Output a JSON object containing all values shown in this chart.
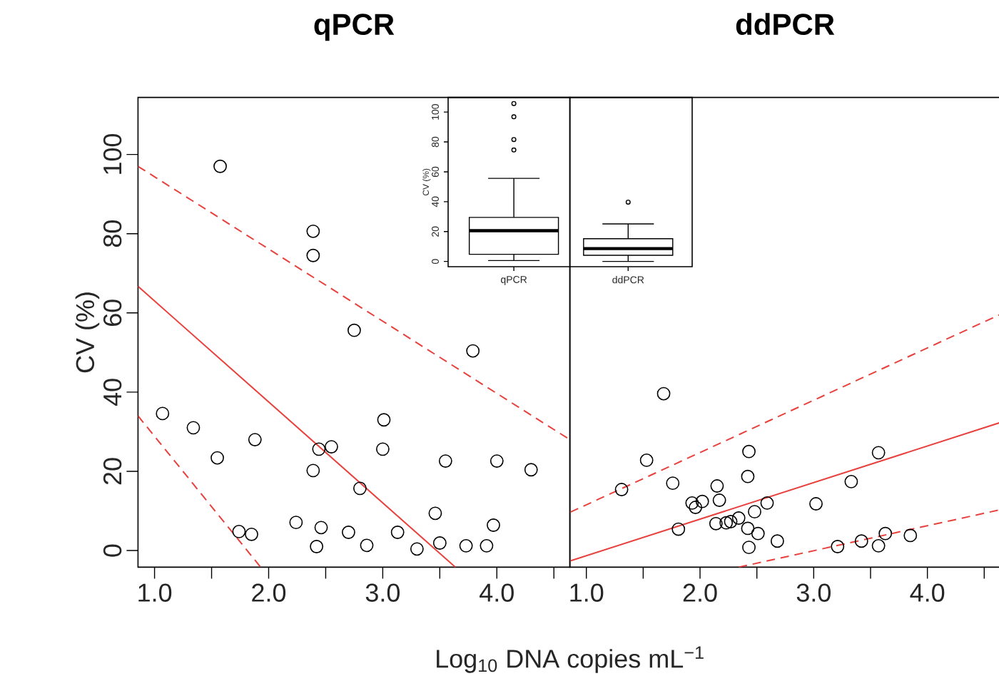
{
  "chart_data": [
    {
      "type": "scatter",
      "title": "qPCR",
      "xlabel": "Log$_{10}$ DNA copies mL$^{−1}$",
      "ylabel": "CV (%)",
      "xlim": [
        0.855,
        4.64
      ],
      "ylim": [
        -4.2,
        114.4
      ],
      "xticks": [
        {
          "value": 1,
          "label": "1.0"
        },
        {
          "value": 1.5,
          "label": null
        },
        {
          "value": 2,
          "label": "2.0"
        },
        {
          "value": 2.5,
          "label": null
        },
        {
          "value": 3,
          "label": "3.0"
        },
        {
          "value": 3.5,
          "label": null
        },
        {
          "value": 4,
          "label": "4.0"
        },
        {
          "value": 4.5,
          "label": null
        }
      ],
      "yticks": [
        0,
        20,
        40,
        60,
        80,
        100
      ],
      "series": [
        {
          "type": "scatter",
          "marker": "circle",
          "color": "#000000",
          "x": [
            1.575,
            2.39,
            2.39,
            2.75,
            3.79,
            1.07,
            1.34,
            1.55,
            1.88,
            3.01,
            2.44,
            2.55,
            3.0,
            2.39,
            3.55,
            4.0,
            4.3,
            2.8,
            1.74,
            1.85,
            2.24,
            2.46,
            2.7,
            3.13,
            3.46,
            3.97,
            2.42,
            2.86,
            3.3,
            3.5,
            3.73,
            3.91
          ],
          "values": [
            97.0,
            80.6,
            74.5,
            55.6,
            50.4,
            34.6,
            31.0,
            23.4,
            28.0,
            33.0,
            25.6,
            26.2,
            25.6,
            20.2,
            22.6,
            22.6,
            20.4,
            15.7,
            4.8,
            4.1,
            7.1,
            5.8,
            4.6,
            4.6,
            9.4,
            6.4,
            1.0,
            1.3,
            0.4,
            1.9,
            1.2,
            1.2
          ]
        },
        {
          "type": "line",
          "color": "#e8413d",
          "line_style": "solid",
          "x": [
            0.855,
            3.637
          ],
          "values": [
            66.7,
            -4.2
          ]
        },
        {
          "type": "line",
          "color": "#e8413d",
          "line_style": "dashed",
          "x": [
            0.855,
            4.64
          ],
          "values": [
            97.0,
            28.0
          ]
        },
        {
          "type": "line",
          "color": "#e8413d",
          "line_style": "dashed",
          "x": [
            0.855,
            1.93
          ],
          "values": [
            34.0,
            -4.2
          ]
        }
      ]
    },
    {
      "type": "scatter",
      "title": "ddPCR",
      "xlim": [
        0.855,
        4.64
      ],
      "ylim": [
        -4.2,
        114.4
      ],
      "tick_labels": "x",
      "xticks": [
        {
          "value": 1,
          "label": "1.0"
        },
        {
          "value": 1.5,
          "label": null
        },
        {
          "value": 2,
          "label": "2.0"
        },
        {
          "value": 2.5,
          "label": null
        },
        {
          "value": 3,
          "label": "3.0"
        },
        {
          "value": 3.5,
          "label": null
        },
        {
          "value": 4,
          "label": "4.0"
        },
        {
          "value": 4.5,
          "label": null
        }
      ],
      "series": [
        {
          "type": "scatter",
          "marker": "circle",
          "color": "#000000",
          "x": [
            1.68,
            1.53,
            1.31,
            1.76,
            2.43,
            2.42,
            3.57,
            3.33,
            2.15,
            1.93,
            1.96,
            2.02,
            2.17,
            2.59,
            3.02,
            2.48,
            1.81,
            2.14,
            2.23,
            2.27,
            2.34,
            2.42,
            2.51,
            2.68,
            2.43,
            3.21,
            3.42,
            3.57,
            3.63,
            3.85
          ],
          "values": [
            39.6,
            22.8,
            15.4,
            17.0,
            25.0,
            18.7,
            24.7,
            17.4,
            16.3,
            12.0,
            10.9,
            12.4,
            12.7,
            12.0,
            11.8,
            9.8,
            5.4,
            6.8,
            7.0,
            7.3,
            8.2,
            5.6,
            4.3,
            2.4,
            0.8,
            1.0,
            2.4,
            1.2,
            4.3,
            3.8
          ]
        },
        {
          "type": "line",
          "color": "#e8413d",
          "line_style": "solid",
          "x": [
            0.86,
            4.64
          ],
          "values": [
            -2.6,
            32.3
          ]
        },
        {
          "type": "line",
          "color": "#e8413d",
          "line_style": "dashed",
          "x": [
            0.86,
            4.64
          ],
          "values": [
            9.7,
            59.6
          ]
        },
        {
          "type": "line",
          "color": "#e8413d",
          "line_style": "dashed",
          "x": [
            2.34,
            4.64
          ],
          "values": [
            -4.2,
            10.3
          ]
        }
      ]
    },
    {
      "type": "box",
      "ylabel": "CV (%)",
      "categories": [
        "qPCR",
        "ddPCR"
      ],
      "ylim": [
        -3.5,
        109.8
      ],
      "yticks": [
        0,
        20,
        40,
        60,
        80,
        100
      ],
      "boxes": [
        {
          "low": 0.6,
          "q1": 4.8,
          "median": 20.6,
          "q3": 29.5,
          "high": 55.6,
          "outliers": [
            105.7,
            96.8,
            81.6,
            74.6
          ]
        },
        {
          "low": 0,
          "q1": 4.1,
          "median": 8.6,
          "q3": 15.2,
          "high": 25.1,
          "outliers": [
            39.7
          ]
        }
      ]
    }
  ]
}
